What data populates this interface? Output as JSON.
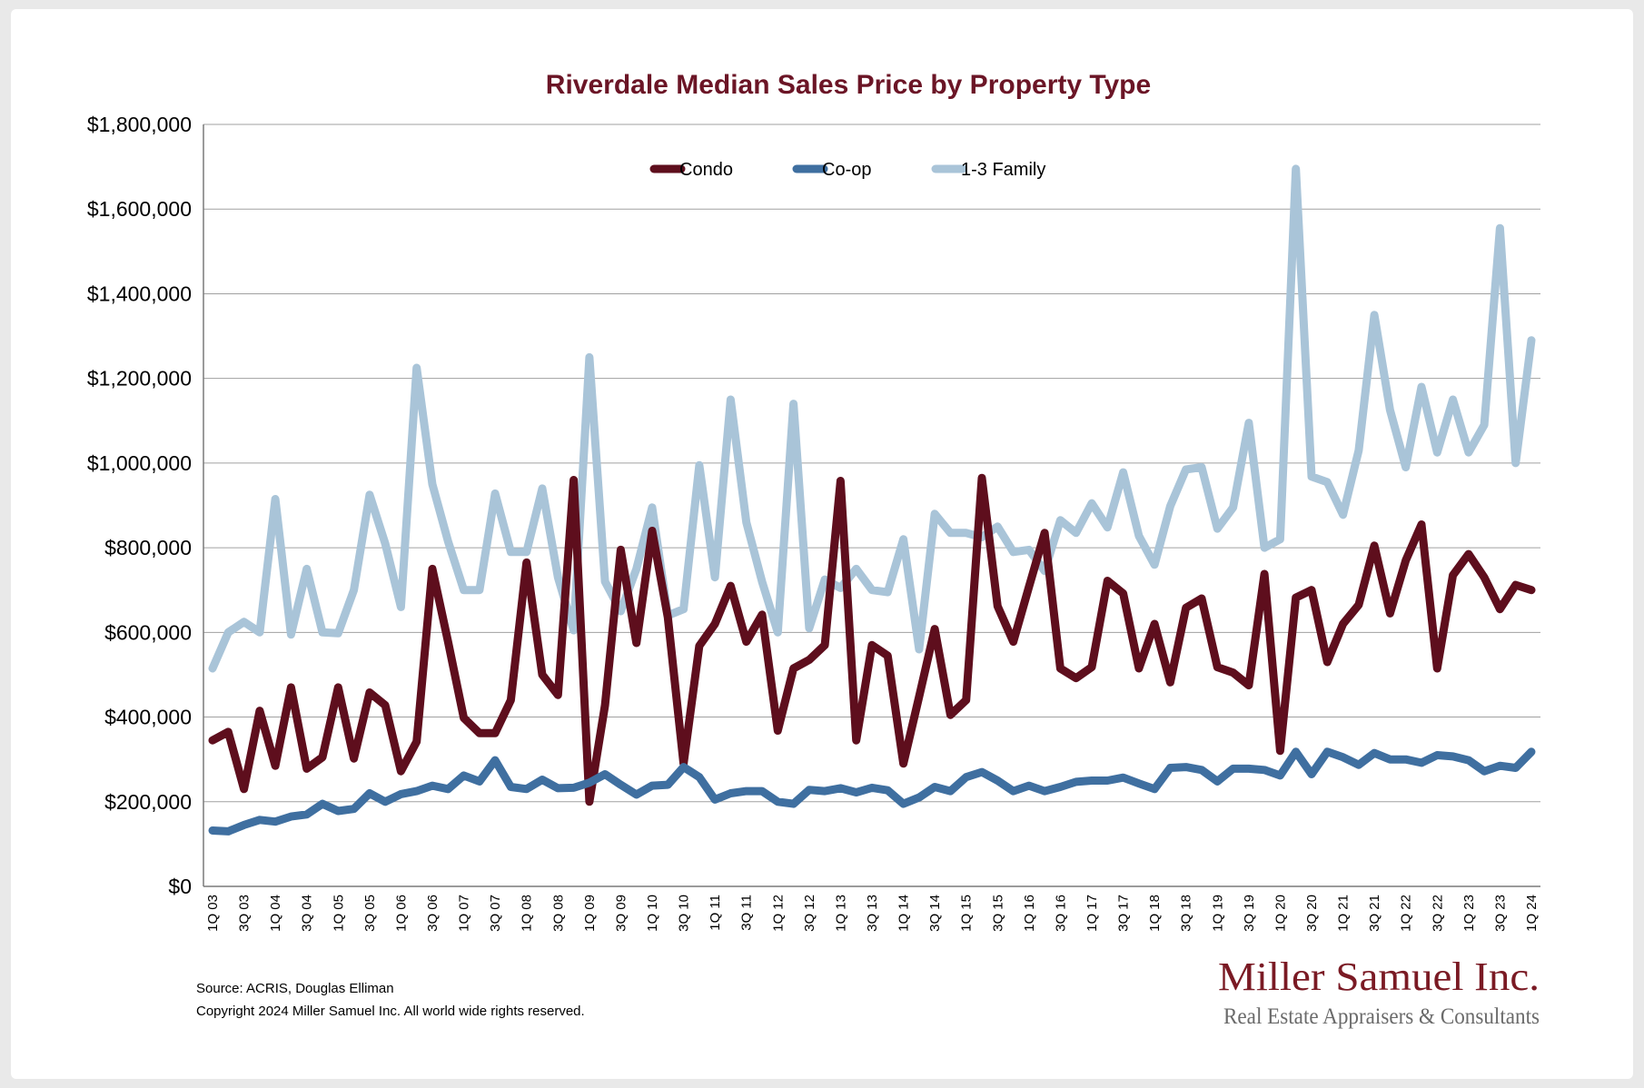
{
  "chart_data": {
    "type": "line",
    "title": "Riverdale Median Sales Price by Property Type",
    "ylim": [
      0,
      1800000
    ],
    "y_ticks": [
      "$0",
      "$200,000",
      "$400,000",
      "$600,000",
      "$800,000",
      "$1,000,000",
      "$1,200,000",
      "$1,400,000",
      "$1,600,000",
      "$1,800,000"
    ],
    "legend_position": "top-center",
    "grid": "horizontal",
    "x": [
      "1Q 03",
      "2Q 03",
      "3Q 03",
      "4Q 03",
      "1Q 04",
      "2Q 04",
      "3Q 04",
      "4Q 04",
      "1Q 05",
      "2Q 05",
      "3Q 05",
      "4Q 05",
      "1Q 06",
      "2Q 06",
      "3Q 06",
      "4Q 06",
      "1Q 07",
      "2Q 07",
      "3Q 07",
      "4Q 07",
      "1Q 08",
      "2Q 08",
      "3Q 08",
      "4Q 08",
      "1Q 09",
      "2Q 09",
      "3Q 09",
      "4Q 09",
      "1Q 10",
      "2Q 10",
      "3Q 10",
      "4Q 10",
      "1Q 11",
      "2Q 11",
      "3Q 11",
      "4Q 11",
      "1Q 12",
      "2Q 12",
      "3Q 12",
      "4Q 12",
      "1Q 13",
      "2Q 13",
      "3Q 13",
      "4Q 13",
      "1Q 14",
      "2Q 14",
      "3Q 14",
      "4Q 14",
      "1Q 15",
      "2Q 15",
      "3Q 15",
      "4Q 15",
      "1Q 16",
      "2Q 16",
      "3Q 16",
      "4Q 16",
      "1Q 17",
      "2Q 17",
      "3Q 17",
      "4Q 17",
      "1Q 18",
      "2Q 18",
      "3Q 18",
      "4Q 18",
      "1Q 19",
      "2Q 19",
      "3Q 19",
      "4Q 19",
      "1Q 20",
      "2Q 20",
      "3Q 20",
      "4Q 20",
      "1Q 21",
      "2Q 21",
      "3Q 21",
      "4Q 21",
      "1Q 22",
      "2Q 22",
      "3Q 22",
      "4Q 22",
      "1Q 23",
      "2Q 23",
      "3Q 23",
      "4Q 23",
      "1Q 24"
    ],
    "tick_labels": [
      "1Q 03",
      "3Q 03",
      "1Q 04",
      "3Q 04",
      "1Q 05",
      "3Q 05",
      "1Q 06",
      "3Q 06",
      "1Q 07",
      "3Q 07",
      "1Q 08",
      "3Q 08",
      "1Q 09",
      "3Q 09",
      "1Q 10",
      "3Q 10",
      "1Q 11",
      "3Q 11",
      "1Q 12",
      "3Q 12",
      "1Q 13",
      "3Q 13",
      "1Q 14",
      "3Q 14",
      "1Q 15",
      "3Q 15",
      "1Q 16",
      "3Q 16",
      "1Q 17",
      "3Q 17",
      "1Q 18",
      "3Q 18",
      "1Q 19",
      "3Q 19",
      "1Q 20",
      "3Q 20",
      "1Q 21",
      "3Q 21",
      "1Q 22",
      "3Q 22",
      "1Q 23",
      "3Q 23",
      "1Q 24"
    ],
    "series": [
      {
        "name": "1-3 Family",
        "color": "#a9c4d8",
        "values": [
          515000,
          600000,
          625000,
          600000,
          915000,
          595000,
          750000,
          600000,
          598000,
          700000,
          925000,
          810000,
          660000,
          1225000,
          950000,
          815000,
          700000,
          700000,
          928000,
          790000,
          790000,
          940000,
          730000,
          605000,
          1250000,
          720000,
          650000,
          750000,
          895000,
          640000,
          655000,
          995000,
          730000,
          1150000,
          860000,
          720000,
          600000,
          1140000,
          610000,
          725000,
          705000,
          750000,
          700000,
          695000,
          820000,
          560000,
          880000,
          835000,
          835000,
          825000,
          850000,
          790000,
          795000,
          745000,
          865000,
          835000,
          905000,
          848000,
          978000,
          828000,
          760000,
          898000,
          985000,
          990000,
          845000,
          895000,
          1095000,
          800000,
          820000,
          1695000,
          968000,
          955000,
          878000,
          1030000,
          1350000,
          1125000,
          990000,
          1180000,
          1025000,
          1150000,
          1025000,
          1090000,
          1555000,
          1000000,
          1290000
        ]
      },
      {
        "name": "Condo",
        "color": "#5e0e1d",
        "values": [
          345000,
          365000,
          230000,
          415000,
          285000,
          470000,
          278000,
          305000,
          470000,
          302000,
          458000,
          428000,
          272000,
          342000,
          750000,
          578000,
          398000,
          362000,
          362000,
          440000,
          765000,
          500000,
          452000,
          960000,
          200000,
          428000,
          795000,
          575000,
          840000,
          635000,
          290000,
          568000,
          620000,
          710000,
          578000,
          642000,
          368000,
          515000,
          535000,
          570000,
          958000,
          345000,
          570000,
          545000,
          290000,
          448000,
          608000,
          405000,
          440000,
          965000,
          662000,
          578000,
          708000,
          835000,
          515000,
          492000,
          518000,
          722000,
          692000,
          515000,
          620000,
          482000,
          658000,
          680000,
          518000,
          505000,
          475000,
          738000,
          320000,
          682000,
          700000,
          530000,
          620000,
          665000,
          805000,
          645000,
          770000,
          855000,
          515000,
          735000,
          785000,
          730000,
          655000,
          712000,
          700000
        ]
      },
      {
        "name": "Co-op",
        "color": "#3f6fa0",
        "values": [
          132000,
          130000,
          145000,
          157000,
          153000,
          165000,
          170000,
          195000,
          178000,
          183000,
          220000,
          200000,
          218000,
          225000,
          238000,
          230000,
          262000,
          248000,
          298000,
          235000,
          230000,
          252000,
          232000,
          233000,
          245000,
          265000,
          240000,
          217000,
          238000,
          240000,
          282000,
          258000,
          205000,
          220000,
          225000,
          225000,
          200000,
          195000,
          228000,
          225000,
          232000,
          222000,
          233000,
          227000,
          195000,
          210000,
          235000,
          225000,
          258000,
          270000,
          250000,
          225000,
          238000,
          225000,
          235000,
          247000,
          250000,
          250000,
          257000,
          243000,
          230000,
          280000,
          282000,
          275000,
          248000,
          278000,
          278000,
          275000,
          262000,
          318000,
          265000,
          318000,
          305000,
          287000,
          315000,
          300000,
          300000,
          292000,
          310000,
          307000,
          298000,
          272000,
          285000,
          280000,
          318000
        ]
      }
    ],
    "legend": [
      {
        "name": "Condo",
        "color": "#5e0e1d"
      },
      {
        "name": "Co-op",
        "color": "#3f6fa0"
      },
      {
        "name": "1-3 Family",
        "color": "#a9c4d8"
      }
    ]
  },
  "footer": {
    "source": "Source: ACRIS, Douglas Elliman",
    "copyright": "Copyright 2024 Miller Samuel Inc.  All world wide rights reserved."
  },
  "logo": {
    "name": "Miller Samuel Inc.",
    "tagline": "Real Estate Appraisers & Consultants"
  }
}
